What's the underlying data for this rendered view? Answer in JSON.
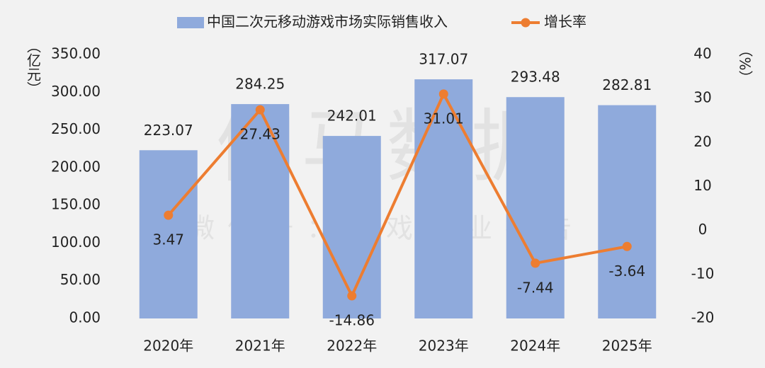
{
  "chart_data": {
    "type": "bar",
    "watermark": {
      "title": "伽马数据",
      "subtitle": "微信号：游戏产业报告"
    },
    "ylabel": "（亿元）",
    "y2label": "（%）",
    "categories": [
      "2020年",
      "2021年",
      "2022年",
      "2023年",
      "2024年",
      "2025年"
    ],
    "series": [
      {
        "name": "中国二次元移动游戏市场实际销售收入",
        "type": "bar",
        "color": "#8faadc",
        "values": [
          223.07,
          284.25,
          242.01,
          317.07,
          293.48,
          282.81
        ]
      },
      {
        "name": "增长率",
        "type": "line",
        "color": "#ed7d31",
        "axis": "y2",
        "values": [
          3.47,
          27.43,
          -14.86,
          31.01,
          -7.44,
          -3.64
        ]
      }
    ],
    "ylim": [
      0,
      350
    ],
    "yticks": [
      {
        "value": 0,
        "label": "0.00"
      },
      {
        "value": 50,
        "label": "50.00"
      },
      {
        "value": 100,
        "label": "100.00"
      },
      {
        "value": 150,
        "label": "150.00"
      },
      {
        "value": 200,
        "label": "200.00"
      },
      {
        "value": 250,
        "label": "250.00"
      },
      {
        "value": 300,
        "label": "300.00"
      },
      {
        "value": 350,
        "label": "350.00"
      }
    ],
    "y2lim": [
      -20,
      40
    ],
    "y2ticks": [
      -20,
      -10,
      0,
      10,
      20,
      30,
      40
    ],
    "legend": "top"
  }
}
